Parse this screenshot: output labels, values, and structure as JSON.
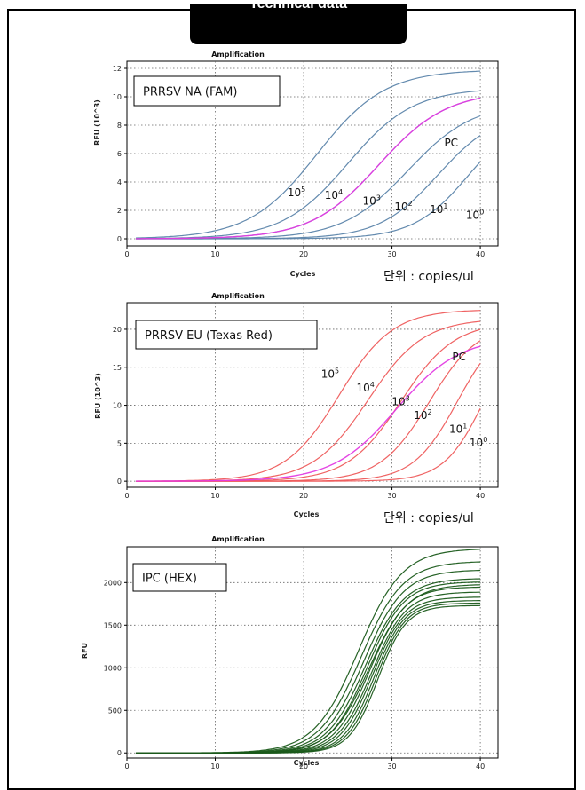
{
  "header": {
    "title": "Technical data"
  },
  "unit_note": "단위 : copies/ul",
  "chart_data": [
    {
      "type": "line",
      "title": "Amplification",
      "panel_label": "PRRSV NA (FAM)",
      "xlabel": "Cycles",
      "ylabel": "RFU (10^3)",
      "xlim": [
        0,
        42
      ],
      "ylim": [
        -0.5,
        12.5
      ],
      "xticks": [
        0,
        10,
        20,
        30,
        40
      ],
      "yticks": [
        0,
        2,
        4,
        6,
        8,
        10,
        12
      ],
      "grid": true,
      "color": "#5b84aa",
      "highlight_color": "#e33be3",
      "series": [
        {
          "name": "10^5",
          "ct": 21.5,
          "plateau": 11.9,
          "slope": 0.26
        },
        {
          "name": "10^4",
          "ct": 25.0,
          "plateau": 10.6,
          "slope": 0.27
        },
        {
          "name": "PC",
          "ct": 28.5,
          "plateau": 10.4,
          "slope": 0.26,
          "highlight": true
        },
        {
          "name": "10^3",
          "ct": 28.5,
          "plateau": 10.4,
          "slope": 0.26
        },
        {
          "name": "10^2",
          "ct": 31.8,
          "plateau": 9.6,
          "slope": 0.27
        },
        {
          "name": "10^1",
          "ct": 35.2,
          "plateau": 9.0,
          "slope": 0.3
        },
        {
          "name": "10^0",
          "ct": 38.7,
          "plateau": 9.0,
          "slope": 0.32
        }
      ],
      "annotations": [
        {
          "text": "10",
          "sup": "5",
          "x": 19.2,
          "y": 3.0
        },
        {
          "text": "10",
          "sup": "4",
          "x": 23.4,
          "y": 2.8
        },
        {
          "text": "10",
          "sup": "3",
          "x": 27.7,
          "y": 2.4
        },
        {
          "text": "10",
          "sup": "2",
          "x": 31.3,
          "y": 2.0
        },
        {
          "text": "10",
          "sup": "1",
          "x": 35.3,
          "y": 1.8
        },
        {
          "text": "10",
          "sup": "0",
          "x": 39.4,
          "y": 1.4
        },
        {
          "text": "PC",
          "sup": "",
          "x": 36.7,
          "y": 6.5
        }
      ]
    },
    {
      "type": "line",
      "title": "Amplification",
      "panel_label": "PRRSV EU (Texas Red)",
      "xlabel": "Cycles",
      "ylabel": "RFU (10^3)",
      "xlim": [
        0,
        42
      ],
      "ylim": [
        -0.8,
        23.5
      ],
      "xticks": [
        0,
        10,
        20,
        30,
        40
      ],
      "yticks": [
        0,
        5,
        10,
        15,
        20
      ],
      "grid": true,
      "color": "#ee5b5b",
      "highlight_color": "#e33be3",
      "series": [
        {
          "name": "10^5",
          "ct": 24.0,
          "plateau": 22.6,
          "slope": 0.33
        },
        {
          "name": "10^4",
          "ct": 27.3,
          "plateau": 21.4,
          "slope": 0.32
        },
        {
          "name": "PC",
          "ct": 30.5,
          "plateau": 19.0,
          "slope": 0.28,
          "highlight": true
        },
        {
          "name": "10^3",
          "ct": 31.0,
          "plateau": 21.0,
          "slope": 0.33
        },
        {
          "name": "10^2",
          "ct": 34.2,
          "plateau": 20.8,
          "slope": 0.36
        },
        {
          "name": "10^1",
          "ct": 37.4,
          "plateau": 21.0,
          "slope": 0.4
        },
        {
          "name": "10^0",
          "ct": 40.4,
          "plateau": 21.0,
          "slope": 0.44
        }
      ],
      "annotations": [
        {
          "text": "10",
          "sup": "5",
          "x": 23.0,
          "y": 13.6
        },
        {
          "text": "10",
          "sup": "4",
          "x": 27.0,
          "y": 11.8
        },
        {
          "text": "10",
          "sup": "3",
          "x": 31.0,
          "y": 10.0
        },
        {
          "text": "10",
          "sup": "2",
          "x": 33.5,
          "y": 8.2
        },
        {
          "text": "10",
          "sup": "1",
          "x": 37.5,
          "y": 6.4
        },
        {
          "text": "10",
          "sup": "0",
          "x": 39.8,
          "y": 4.6
        },
        {
          "text": "PC",
          "sup": "",
          "x": 37.6,
          "y": 15.9
        }
      ]
    },
    {
      "type": "line",
      "title": "Amplification",
      "panel_label": "IPC (HEX)",
      "xlabel": "Cycles",
      "ylabel": "RFU",
      "xlim": [
        0,
        42
      ],
      "ylim": [
        -60,
        2420
      ],
      "xticks": [
        0,
        10,
        20,
        30,
        40
      ],
      "yticks": [
        0,
        500,
        1000,
        1500,
        2000
      ],
      "grid": true,
      "color": "#1a5a1a",
      "series": [
        {
          "ct": 26.2,
          "plateau": 2400,
          "slope": 0.4
        },
        {
          "ct": 26.5,
          "plateau": 2250,
          "slope": 0.42
        },
        {
          "ct": 26.8,
          "plateau": 2150,
          "slope": 0.44
        },
        {
          "ct": 27.0,
          "plateau": 2050,
          "slope": 0.46
        },
        {
          "ct": 27.2,
          "plateau": 2010,
          "slope": 0.48
        },
        {
          "ct": 27.4,
          "plateau": 1980,
          "slope": 0.46
        },
        {
          "ct": 27.5,
          "plateau": 1950,
          "slope": 0.5
        },
        {
          "ct": 27.7,
          "plateau": 1890,
          "slope": 0.52
        },
        {
          "ct": 27.8,
          "plateau": 1830,
          "slope": 0.55
        },
        {
          "ct": 28.0,
          "plateau": 1790,
          "slope": 0.58
        },
        {
          "ct": 28.2,
          "plateau": 1760,
          "slope": 0.6
        },
        {
          "ct": 28.4,
          "plateau": 1730,
          "slope": 0.62
        }
      ]
    }
  ]
}
